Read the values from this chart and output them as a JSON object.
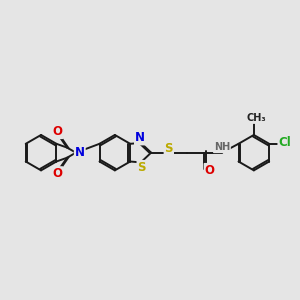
{
  "bg_color": "#e5e5e5",
  "bond_color": "#1a1a1a",
  "bond_width": 1.4,
  "atom_colors": {
    "N": "#0000dd",
    "O": "#dd0000",
    "S": "#bbaa00",
    "Cl": "#22aa22",
    "NH": "#666666",
    "C": "#111111"
  },
  "fs_main": 8.5,
  "fs_small": 7.0
}
